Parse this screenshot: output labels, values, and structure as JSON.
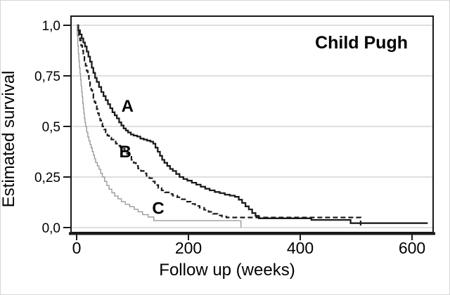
{
  "chart_data": {
    "type": "line",
    "subtype": "kaplan_meier_step",
    "title": "Child Pugh",
    "xlabel": "Follow up (weeks)",
    "ylabel": "Estimated survival",
    "xlim": [
      -10,
      638
    ],
    "ylim": [
      -0.025,
      1.045
    ],
    "grid": "horizontal-y",
    "legend_position": "labels-on-curves",
    "x_ticks": [
      {
        "value": 0,
        "label": "0"
      },
      {
        "value": 200,
        "label": "200"
      },
      {
        "value": 400,
        "label": "400"
      },
      {
        "value": 600,
        "label": "600"
      }
    ],
    "y_ticks": [
      {
        "value": 1.0,
        "label": "1,0"
      },
      {
        "value": 0.75,
        "label": "0,75"
      },
      {
        "value": 0.5,
        "label": "0,5"
      },
      {
        "value": 0.25,
        "label": "0,25"
      },
      {
        "value": 0.0,
        "label": "0,0"
      }
    ],
    "colors": {
      "curve_a": "#1c1c1c",
      "curve_b": "#1c1c1c",
      "curve_c": "#9b9b9b",
      "grid": "#cccccc",
      "frame": "#1a1a1a",
      "text": "#000000"
    },
    "series": [
      {
        "name": "Child Pugh A",
        "label": "A",
        "line_style": "solid",
        "color_key": "curve_a",
        "stroke_width": 2.3,
        "label_at": {
          "x": 91,
          "y": 0.6
        },
        "points": [
          [
            0,
            1.0
          ],
          [
            3,
            0.975
          ],
          [
            6,
            0.955
          ],
          [
            9,
            0.935
          ],
          [
            12,
            0.915
          ],
          [
            15,
            0.895
          ],
          [
            18,
            0.87
          ],
          [
            21,
            0.845
          ],
          [
            24,
            0.82
          ],
          [
            27,
            0.79
          ],
          [
            30,
            0.765
          ],
          [
            33,
            0.74
          ],
          [
            36,
            0.72
          ],
          [
            40,
            0.695
          ],
          [
            44,
            0.67
          ],
          [
            48,
            0.65
          ],
          [
            52,
            0.63
          ],
          [
            56,
            0.61
          ],
          [
            60,
            0.59
          ],
          [
            64,
            0.57
          ],
          [
            68,
            0.555
          ],
          [
            72,
            0.54
          ],
          [
            76,
            0.52
          ],
          [
            80,
            0.505
          ],
          [
            84,
            0.49
          ],
          [
            88,
            0.48
          ],
          [
            92,
            0.47
          ],
          [
            97,
            0.46
          ],
          [
            102,
            0.455
          ],
          [
            108,
            0.45
          ],
          [
            114,
            0.44
          ],
          [
            120,
            0.435
          ],
          [
            126,
            0.43
          ],
          [
            132,
            0.425
          ],
          [
            137,
            0.415
          ],
          [
            141,
            0.395
          ],
          [
            145,
            0.375
          ],
          [
            149,
            0.355
          ],
          [
            153,
            0.335
          ],
          [
            157,
            0.32
          ],
          [
            162,
            0.305
          ],
          [
            167,
            0.29
          ],
          [
            172,
            0.28
          ],
          [
            178,
            0.265
          ],
          [
            184,
            0.25
          ],
          [
            191,
            0.24
          ],
          [
            198,
            0.232
          ],
          [
            206,
            0.222
          ],
          [
            214,
            0.212
          ],
          [
            222,
            0.202
          ],
          [
            230,
            0.192
          ],
          [
            238,
            0.184
          ],
          [
            247,
            0.176
          ],
          [
            256,
            0.17
          ],
          [
            265,
            0.163
          ],
          [
            274,
            0.158
          ],
          [
            283,
            0.152
          ],
          [
            290,
            0.138
          ],
          [
            296,
            0.122
          ],
          [
            302,
            0.105
          ],
          [
            308,
            0.09
          ],
          [
            314,
            0.072
          ],
          [
            320,
            0.058
          ],
          [
            326,
            0.046
          ],
          [
            420,
            0.038
          ],
          [
            490,
            0.022
          ],
          [
            628,
            0.022
          ]
        ]
      },
      {
        "name": "Child Pugh B",
        "label": "B",
        "line_style": "dashed",
        "color_key": "curve_b",
        "stroke_width": 2.2,
        "dash": "7 4",
        "label_at": {
          "x": 87,
          "y": 0.375
        },
        "points": [
          [
            0,
            1.0
          ],
          [
            2,
            0.975
          ],
          [
            4,
            0.95
          ],
          [
            6,
            0.925
          ],
          [
            8,
            0.9
          ],
          [
            10,
            0.875
          ],
          [
            12,
            0.85
          ],
          [
            14,
            0.825
          ],
          [
            16,
            0.8
          ],
          [
            18,
            0.775
          ],
          [
            20,
            0.75
          ],
          [
            22,
            0.725
          ],
          [
            24,
            0.7
          ],
          [
            26,
            0.68
          ],
          [
            28,
            0.66
          ],
          [
            30,
            0.64
          ],
          [
            32,
            0.62
          ],
          [
            34,
            0.6
          ],
          [
            36,
            0.585
          ],
          [
            38,
            0.565
          ],
          [
            40,
            0.55
          ],
          [
            42,
            0.53
          ],
          [
            44,
            0.515
          ],
          [
            46,
            0.5
          ],
          [
            49,
            0.485
          ],
          [
            52,
            0.47
          ],
          [
            55,
            0.455
          ],
          [
            58,
            0.445
          ],
          [
            62,
            0.435
          ],
          [
            66,
            0.425
          ],
          [
            70,
            0.415
          ],
          [
            74,
            0.405
          ],
          [
            78,
            0.398
          ],
          [
            82,
            0.39
          ],
          [
            86,
            0.378
          ],
          [
            90,
            0.365
          ],
          [
            94,
            0.35
          ],
          [
            98,
            0.335
          ],
          [
            102,
            0.32
          ],
          [
            106,
            0.305
          ],
          [
            110,
            0.292
          ],
          [
            115,
            0.28
          ],
          [
            120,
            0.268
          ],
          [
            125,
            0.256
          ],
          [
            130,
            0.244
          ],
          [
            135,
            0.228
          ],
          [
            140,
            0.21
          ],
          [
            146,
            0.196
          ],
          [
            152,
            0.184
          ],
          [
            158,
            0.174
          ],
          [
            165,
            0.166
          ],
          [
            172,
            0.158
          ],
          [
            180,
            0.15
          ],
          [
            188,
            0.14
          ],
          [
            196,
            0.128
          ],
          [
            204,
            0.117
          ],
          [
            212,
            0.107
          ],
          [
            220,
            0.098
          ],
          [
            228,
            0.088
          ],
          [
            236,
            0.078
          ],
          [
            244,
            0.068
          ],
          [
            252,
            0.06
          ],
          [
            260,
            0.054
          ],
          [
            268,
            0.05
          ],
          [
            508,
            0.05
          ],
          [
            508,
            0.004
          ]
        ]
      },
      {
        "name": "Child Pugh C",
        "label": "C",
        "line_style": "solid",
        "color_key": "curve_c",
        "stroke_width": 1.4,
        "label_at": {
          "x": 146,
          "y": 0.095
        },
        "points": [
          [
            0,
            1.0
          ],
          [
            1,
            0.95
          ],
          [
            2,
            0.9
          ],
          [
            3,
            0.86
          ],
          [
            4,
            0.825
          ],
          [
            5,
            0.79
          ],
          [
            6,
            0.76
          ],
          [
            7,
            0.73
          ],
          [
            8,
            0.7
          ],
          [
            9,
            0.67
          ],
          [
            10,
            0.645
          ],
          [
            11,
            0.615
          ],
          [
            12,
            0.59
          ],
          [
            13,
            0.565
          ],
          [
            14,
            0.54
          ],
          [
            15,
            0.52
          ],
          [
            16,
            0.5
          ],
          [
            18,
            0.472
          ],
          [
            20,
            0.448
          ],
          [
            22,
            0.428
          ],
          [
            24,
            0.41
          ],
          [
            26,
            0.394
          ],
          [
            28,
            0.376
          ],
          [
            30,
            0.358
          ],
          [
            32,
            0.34
          ],
          [
            34,
            0.322
          ],
          [
            37,
            0.305
          ],
          [
            40,
            0.288
          ],
          [
            43,
            0.268
          ],
          [
            46,
            0.25
          ],
          [
            50,
            0.228
          ],
          [
            54,
            0.208
          ],
          [
            58,
            0.19
          ],
          [
            63,
            0.172
          ],
          [
            68,
            0.156
          ],
          [
            74,
            0.142
          ],
          [
            80,
            0.128
          ],
          [
            87,
            0.115
          ],
          [
            95,
            0.103
          ],
          [
            103,
            0.09
          ],
          [
            110,
            0.078
          ],
          [
            118,
            0.064
          ],
          [
            128,
            0.052
          ],
          [
            138,
            0.034
          ],
          [
            294,
            0.034
          ],
          [
            294,
            0.0
          ]
        ]
      }
    ]
  }
}
